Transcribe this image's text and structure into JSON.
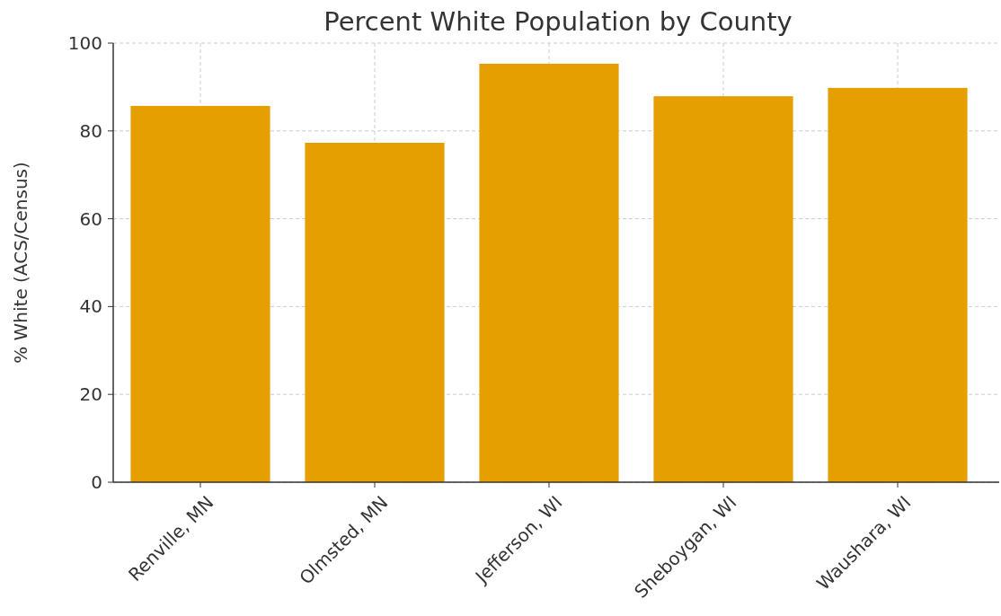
{
  "chart_data": {
    "type": "bar",
    "title": "Percent White Population by County",
    "ylabel": "% White (ACS/Census)",
    "categories": [
      "Renville, MN",
      "Olmsted, MN",
      "Jefferson, WI",
      "Sheboygan, WI",
      "Waushara, WI"
    ],
    "values": [
      85.7,
      77.3,
      95.3,
      87.9,
      89.8
    ],
    "color": "#e5a000",
    "ylim": [
      0,
      100
    ],
    "yticks": [
      0,
      20,
      40,
      60,
      80,
      100
    ],
    "grid": true
  }
}
